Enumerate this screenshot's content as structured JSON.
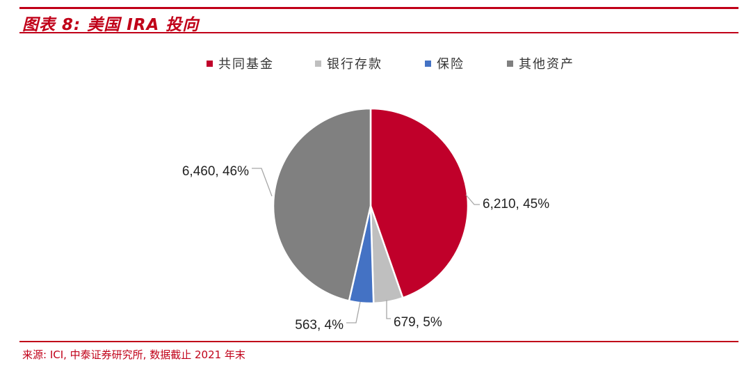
{
  "header": {
    "title": "图表 8: 美国 IRA 投向"
  },
  "footer": {
    "source": "来源: ICI, 中泰证券研究所, 数据截止 2021 年末"
  },
  "chart_data": {
    "type": "pie",
    "series": [
      {
        "name": "共同基金",
        "value": 6210,
        "label": "6,210, 45%",
        "color": "#c0002a"
      },
      {
        "name": "银行存款",
        "value": 679,
        "label": "679, 5%",
        "color": "#bfbfbf"
      },
      {
        "name": "保险",
        "value": 563,
        "label": "563, 4%",
        "color": "#4472c4"
      },
      {
        "name": "其他资产",
        "value": 6460,
        "label": "6,460, 46%",
        "color": "#808080"
      }
    ],
    "legend": {
      "placement": "top",
      "entries": [
        "共同基金",
        "银行存款",
        "保险",
        "其他资产"
      ]
    }
  }
}
